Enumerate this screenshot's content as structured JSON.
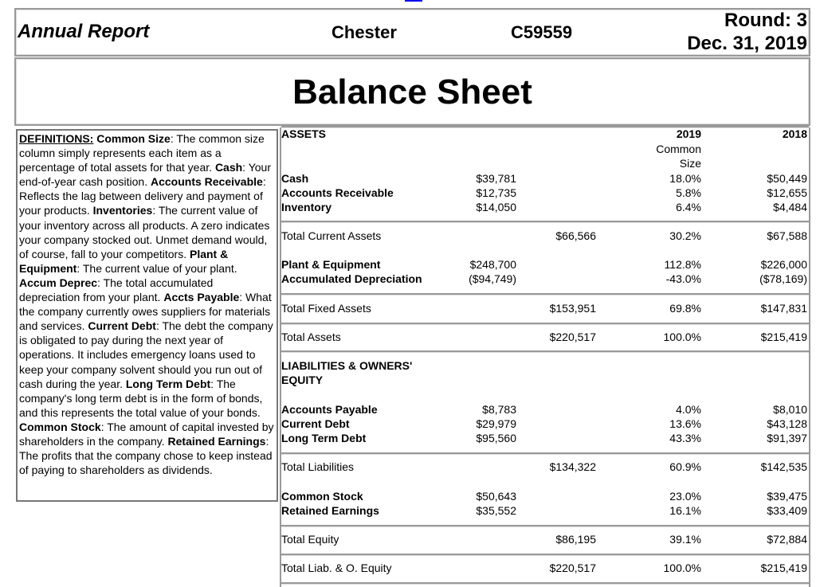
{
  "header": {
    "title": "Annual Report",
    "company": "Chester",
    "id": "C59559",
    "round": "Round: 3",
    "date": "Dec. 31, 2019"
  },
  "page_title": "Balance Sheet",
  "definitions": [
    {
      "term": "DEFINITIONS:",
      "text": ""
    },
    {
      "term": "Common Size",
      "text": ": The common size column simply represents each item as a percentage of total assets for that year. "
    },
    {
      "term": "Cash",
      "text": ": Your end-of-year cash position. "
    },
    {
      "term": "Accounts Receivable",
      "text": ": Reflects the lag between delivery and payment of your products. "
    },
    {
      "term": "Inventories",
      "text": ": The current value of your inventory across all products. A zero indicates your company stocked out. Unmet demand would, of course, fall to your competitors. "
    },
    {
      "term": "Plant & Equipment",
      "text": ": The current value of your plant. "
    },
    {
      "term": "Accum Deprec",
      "text": ": The total accumulated depreciation from your plant. "
    },
    {
      "term": "Accts Payable",
      "text": ": What the company currently owes suppliers for materials and services. "
    },
    {
      "term": "Current Debt",
      "text": ": The debt the company is obligated to pay during the next year of operations. It includes emergency loans used to keep your company solvent should you run out of cash during the year. "
    },
    {
      "term": "Long Term Debt",
      "text": ": The company's long term debt is in the form of bonds, and this represents the total value of your bonds. "
    },
    {
      "term": "Common Stock",
      "text": ": The amount of capital invested by shareholders in the company. "
    },
    {
      "term": "Retained Earnings",
      "text": ": The profits that the company chose to keep instead of paying to shareholders as dividends."
    }
  ],
  "table": {
    "assets_heading": "ASSETS",
    "col_2019": "2019",
    "col_common": "Common",
    "col_size": "Size",
    "col_2018": "2018",
    "liab_heading_1": "LIABILITIES & OWNERS'",
    "liab_heading_2": "EQUITY",
    "rows": [
      {
        "label": "Cash",
        "bold": true,
        "detail": "$39,781",
        "total": "",
        "pct": "18.0%",
        "prior": "$50,449"
      },
      {
        "label": "Accounts Receivable",
        "bold": true,
        "detail": "$12,735",
        "total": "",
        "pct": "5.8%",
        "prior": "$12,655"
      },
      {
        "label": "Inventory",
        "bold": true,
        "detail": "$14,050",
        "total": "",
        "pct": "6.4%",
        "prior": "$4,484"
      },
      {
        "label": "Total Current Assets",
        "bold": false,
        "detail": "",
        "total": "$66,566",
        "pct": "30.2%",
        "prior": "$67,588"
      },
      {
        "label": "Plant & Equipment",
        "bold": true,
        "detail": "$248,700",
        "total": "",
        "pct": "112.8%",
        "prior": "$226,000"
      },
      {
        "label": "Accumulated Depreciation",
        "bold": true,
        "detail": "($94,749)",
        "total": "",
        "pct": "-43.0%",
        "prior": "($78,169)"
      },
      {
        "label": "Total Fixed Assets",
        "bold": false,
        "detail": "",
        "total": "$153,951",
        "pct": "69.8%",
        "prior": "$147,831"
      },
      {
        "label": "Total Assets",
        "bold": false,
        "detail": "",
        "total": "$220,517",
        "pct": "100.0%",
        "prior": "$215,419"
      },
      {
        "label": "Accounts Payable",
        "bold": true,
        "detail": "$8,783",
        "total": "",
        "pct": "4.0%",
        "prior": "$8,010"
      },
      {
        "label": "Current Debt",
        "bold": true,
        "detail": "$29,979",
        "total": "",
        "pct": "13.6%",
        "prior": "$43,128"
      },
      {
        "label": "Long Term Debt",
        "bold": true,
        "detail": "$95,560",
        "total": "",
        "pct": "43.3%",
        "prior": "$91,397"
      },
      {
        "label": "Total Liabilities",
        "bold": false,
        "detail": "",
        "total": "$134,322",
        "pct": "60.9%",
        "prior": "$142,535"
      },
      {
        "label": "Common Stock",
        "bold": true,
        "detail": "$50,643",
        "total": "",
        "pct": "23.0%",
        "prior": "$39,475"
      },
      {
        "label": "Retained Earnings",
        "bold": true,
        "detail": "$35,552",
        "total": "",
        "pct": "16.1%",
        "prior": "$33,409"
      },
      {
        "label": "Total Equity",
        "bold": false,
        "detail": "",
        "total": "$86,195",
        "pct": "39.1%",
        "prior": "$72,884"
      },
      {
        "label": "Total Liab. & O. Equity",
        "bold": false,
        "detail": "",
        "total": "$220,517",
        "pct": "100.0%",
        "prior": "$215,419"
      }
    ]
  }
}
